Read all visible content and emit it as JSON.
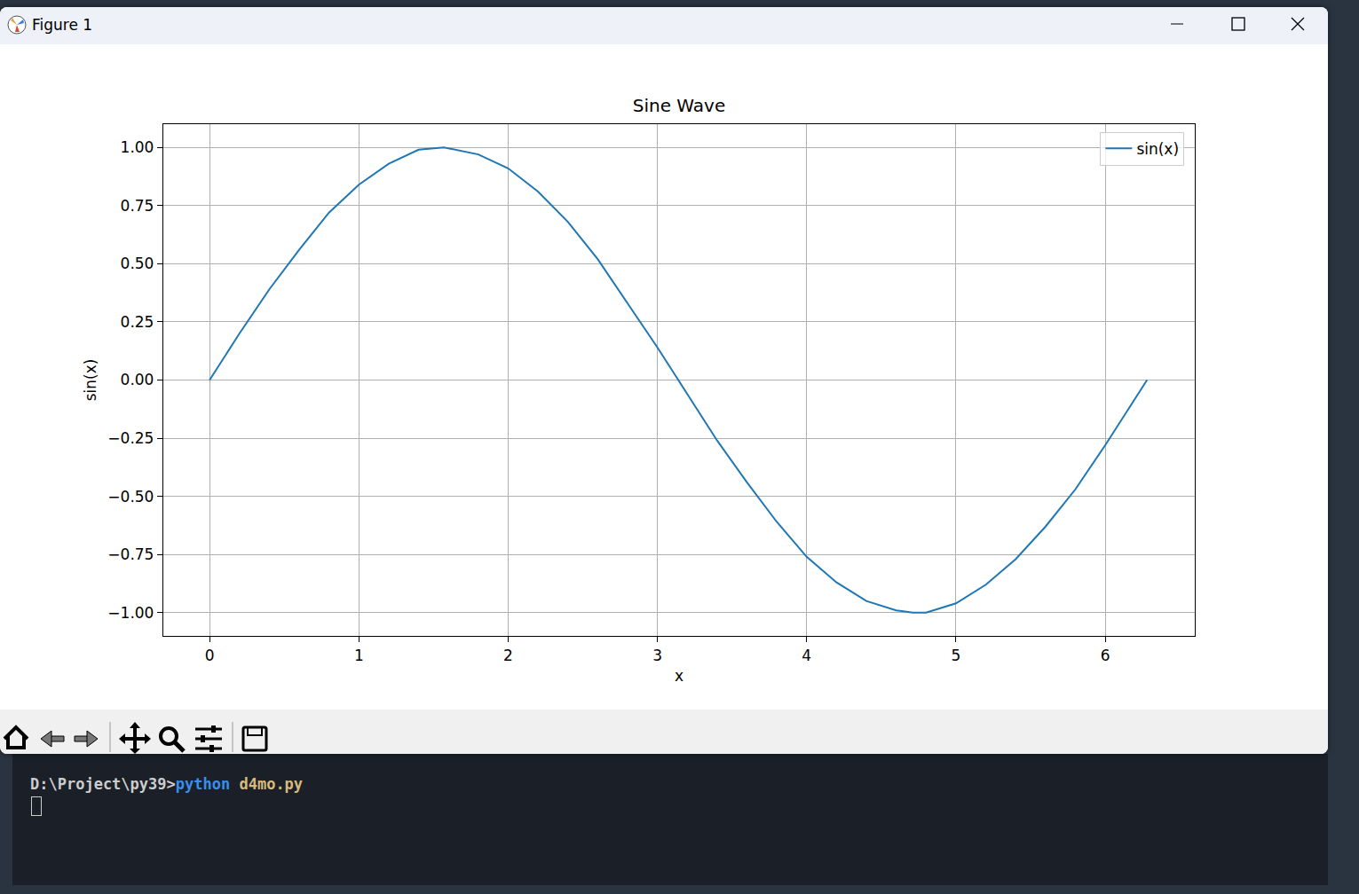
{
  "window": {
    "title": "Figure 1"
  },
  "terminal": {
    "prompt": "D:\\Project\\py39>",
    "command": "python",
    "argument": "d4mo.py"
  },
  "chart_data": {
    "type": "line",
    "title": "Sine Wave",
    "x_label": "x",
    "y_label": "sin(x)",
    "x": [
      0,
      0.2,
      0.4,
      0.6,
      0.8,
      1.0,
      1.2,
      1.4,
      1.57,
      1.8,
      2.0,
      2.2,
      2.4,
      2.6,
      2.8,
      3.0,
      3.2,
      3.4,
      3.6,
      3.8,
      4.0,
      4.2,
      4.4,
      4.6,
      4.71,
      4.8,
      5.0,
      5.2,
      5.4,
      5.6,
      5.8,
      6.0,
      6.2,
      6.28
    ],
    "series": [
      {
        "name": "sin(x)",
        "color": "#1f77b4",
        "values": [
          0,
          0.2,
          0.39,
          0.56,
          0.72,
          0.84,
          0.93,
          0.99,
          1.0,
          0.97,
          0.91,
          0.81,
          0.68,
          0.52,
          0.33,
          0.14,
          -0.06,
          -0.26,
          -0.44,
          -0.61,
          -0.76,
          -0.87,
          -0.95,
          -0.99,
          -1.0,
          -1.0,
          -0.96,
          -0.88,
          -0.77,
          -0.63,
          -0.47,
          -0.28,
          -0.08,
          0.0
        ]
      }
    ],
    "xlim": [
      -0.31,
      6.6
    ],
    "ylim": [
      -1.1,
      1.1
    ],
    "xticks": [
      0,
      1,
      2,
      3,
      4,
      5,
      6
    ],
    "yticks": [
      {
        "value": -1,
        "label": "−1.00"
      },
      {
        "value": -0.75,
        "label": "−0.75"
      },
      {
        "value": -0.5,
        "label": "−0.50"
      },
      {
        "value": -0.25,
        "label": "−0.25"
      },
      {
        "value": 0,
        "label": "0.00"
      },
      {
        "value": 0.25,
        "label": "0.25"
      },
      {
        "value": 0.5,
        "label": "0.50"
      },
      {
        "value": 0.75,
        "label": "0.75"
      },
      {
        "value": 1,
        "label": "1.00"
      }
    ],
    "grid": true,
    "legend": "upper right"
  }
}
